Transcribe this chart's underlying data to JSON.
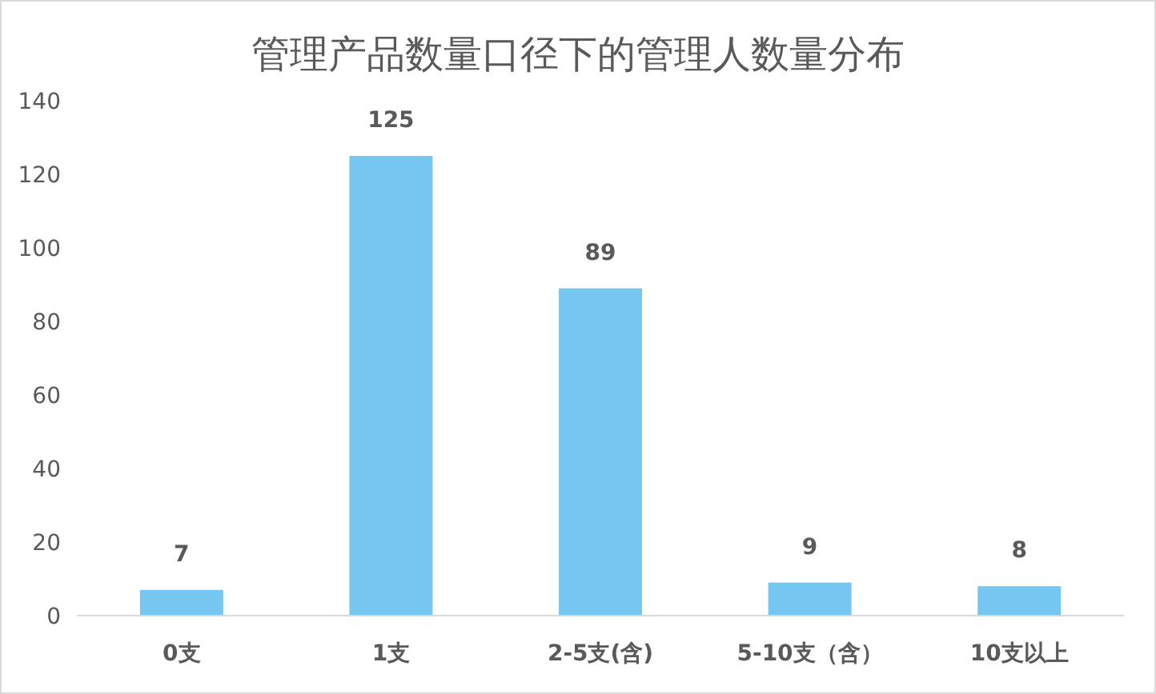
{
  "chart_data": {
    "type": "bar",
    "title": "管理产品数量口径下的管理人数量分布",
    "categories": [
      "0支",
      "1支",
      "2-5支(含)",
      "5-10支（含）",
      "10支以上"
    ],
    "values": [
      7,
      125,
      89,
      9,
      8
    ],
    "color": "#75c6f1",
    "ylim": [
      0,
      140
    ],
    "yticks": [
      0,
      20,
      40,
      60,
      80,
      100,
      120,
      140
    ],
    "grid": false,
    "data_labels": true
  }
}
